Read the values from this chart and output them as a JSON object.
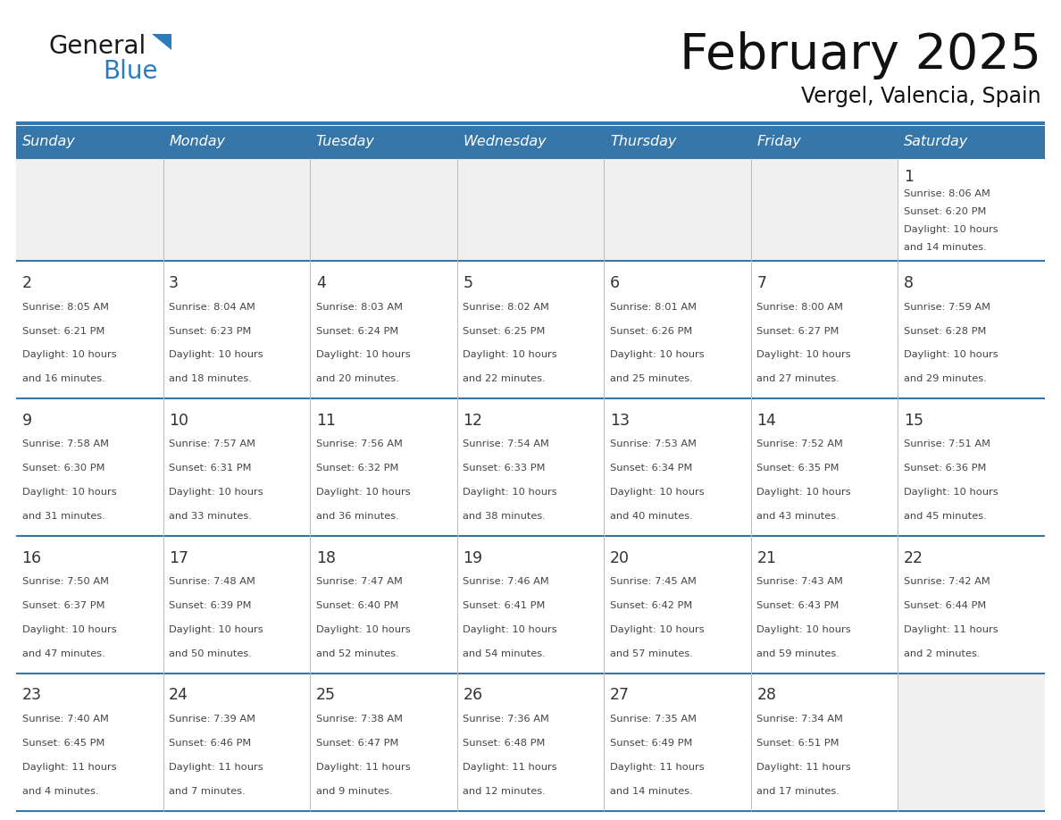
{
  "title": "February 2025",
  "subtitle": "Vergel, Valencia, Spain",
  "header_bg_color": "#3776a8",
  "header_text_color": "#ffffff",
  "day_names": [
    "Sunday",
    "Monday",
    "Tuesday",
    "Wednesday",
    "Thursday",
    "Friday",
    "Saturday"
  ],
  "cell_bg_color": "#ffffff",
  "cell_alt_bg_color": "#f0f0f0",
  "grid_color": "#3776a8",
  "text_color": "#444444",
  "date_color": "#333333",
  "title_color": "#111111",
  "logo_general_color": "#1a1a1a",
  "logo_blue_color": "#2b7bbf",
  "calendar_data": [
    [
      null,
      null,
      null,
      null,
      null,
      null,
      {
        "day": 1,
        "sunrise": "8:06 AM",
        "sunset": "6:20 PM",
        "daylight_hrs": 10,
        "daylight_min": 14
      }
    ],
    [
      {
        "day": 2,
        "sunrise": "8:05 AM",
        "sunset": "6:21 PM",
        "daylight_hrs": 10,
        "daylight_min": 16
      },
      {
        "day": 3,
        "sunrise": "8:04 AM",
        "sunset": "6:23 PM",
        "daylight_hrs": 10,
        "daylight_min": 18
      },
      {
        "day": 4,
        "sunrise": "8:03 AM",
        "sunset": "6:24 PM",
        "daylight_hrs": 10,
        "daylight_min": 20
      },
      {
        "day": 5,
        "sunrise": "8:02 AM",
        "sunset": "6:25 PM",
        "daylight_hrs": 10,
        "daylight_min": 22
      },
      {
        "day": 6,
        "sunrise": "8:01 AM",
        "sunset": "6:26 PM",
        "daylight_hrs": 10,
        "daylight_min": 25
      },
      {
        "day": 7,
        "sunrise": "8:00 AM",
        "sunset": "6:27 PM",
        "daylight_hrs": 10,
        "daylight_min": 27
      },
      {
        "day": 8,
        "sunrise": "7:59 AM",
        "sunset": "6:28 PM",
        "daylight_hrs": 10,
        "daylight_min": 29
      }
    ],
    [
      {
        "day": 9,
        "sunrise": "7:58 AM",
        "sunset": "6:30 PM",
        "daylight_hrs": 10,
        "daylight_min": 31
      },
      {
        "day": 10,
        "sunrise": "7:57 AM",
        "sunset": "6:31 PM",
        "daylight_hrs": 10,
        "daylight_min": 33
      },
      {
        "day": 11,
        "sunrise": "7:56 AM",
        "sunset": "6:32 PM",
        "daylight_hrs": 10,
        "daylight_min": 36
      },
      {
        "day": 12,
        "sunrise": "7:54 AM",
        "sunset": "6:33 PM",
        "daylight_hrs": 10,
        "daylight_min": 38
      },
      {
        "day": 13,
        "sunrise": "7:53 AM",
        "sunset": "6:34 PM",
        "daylight_hrs": 10,
        "daylight_min": 40
      },
      {
        "day": 14,
        "sunrise": "7:52 AM",
        "sunset": "6:35 PM",
        "daylight_hrs": 10,
        "daylight_min": 43
      },
      {
        "day": 15,
        "sunrise": "7:51 AM",
        "sunset": "6:36 PM",
        "daylight_hrs": 10,
        "daylight_min": 45
      }
    ],
    [
      {
        "day": 16,
        "sunrise": "7:50 AM",
        "sunset": "6:37 PM",
        "daylight_hrs": 10,
        "daylight_min": 47
      },
      {
        "day": 17,
        "sunrise": "7:48 AM",
        "sunset": "6:39 PM",
        "daylight_hrs": 10,
        "daylight_min": 50
      },
      {
        "day": 18,
        "sunrise": "7:47 AM",
        "sunset": "6:40 PM",
        "daylight_hrs": 10,
        "daylight_min": 52
      },
      {
        "day": 19,
        "sunrise": "7:46 AM",
        "sunset": "6:41 PM",
        "daylight_hrs": 10,
        "daylight_min": 54
      },
      {
        "day": 20,
        "sunrise": "7:45 AM",
        "sunset": "6:42 PM",
        "daylight_hrs": 10,
        "daylight_min": 57
      },
      {
        "day": 21,
        "sunrise": "7:43 AM",
        "sunset": "6:43 PM",
        "daylight_hrs": 10,
        "daylight_min": 59
      },
      {
        "day": 22,
        "sunrise": "7:42 AM",
        "sunset": "6:44 PM",
        "daylight_hrs": 11,
        "daylight_min": 2
      }
    ],
    [
      {
        "day": 23,
        "sunrise": "7:40 AM",
        "sunset": "6:45 PM",
        "daylight_hrs": 11,
        "daylight_min": 4
      },
      {
        "day": 24,
        "sunrise": "7:39 AM",
        "sunset": "6:46 PM",
        "daylight_hrs": 11,
        "daylight_min": 7
      },
      {
        "day": 25,
        "sunrise": "7:38 AM",
        "sunset": "6:47 PM",
        "daylight_hrs": 11,
        "daylight_min": 9
      },
      {
        "day": 26,
        "sunrise": "7:36 AM",
        "sunset": "6:48 PM",
        "daylight_hrs": 11,
        "daylight_min": 12
      },
      {
        "day": 27,
        "sunrise": "7:35 AM",
        "sunset": "6:49 PM",
        "daylight_hrs": 11,
        "daylight_min": 14
      },
      {
        "day": 28,
        "sunrise": "7:34 AM",
        "sunset": "6:51 PM",
        "daylight_hrs": 11,
        "daylight_min": 17
      },
      null
    ]
  ],
  "n_rows": 5,
  "n_cols": 7
}
